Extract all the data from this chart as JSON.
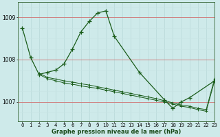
{
  "title": "Graphe pression niveau de la mer (hPa)",
  "bg_color": "#ceeaea",
  "line_color": "#1a5c1a",
  "xlim": [
    -0.5,
    23
  ],
  "ylim": [
    1006.55,
    1009.35
  ],
  "yticks": [
    1007,
    1008,
    1009
  ],
  "xtick_labels": [
    "0",
    "1",
    "2",
    "3",
    "4",
    "5",
    "6",
    "7",
    "8",
    "9",
    "10",
    "11",
    "12",
    "13",
    "14",
    "15",
    "16",
    "17",
    "18",
    "19",
    "20",
    "21",
    "22",
    "23"
  ],
  "xticks": [
    0,
    1,
    2,
    3,
    4,
    5,
    6,
    7,
    8,
    9,
    10,
    11,
    12,
    13,
    14,
    15,
    16,
    17,
    18,
    19,
    20,
    21,
    22,
    23
  ],
  "series1_x": [
    0,
    1,
    2,
    3,
    4,
    5,
    6,
    7,
    8,
    9,
    10,
    11,
    14,
    17,
    18,
    19,
    20,
    23
  ],
  "series1_y": [
    1008.75,
    1008.05,
    1007.65,
    1007.7,
    1007.75,
    1007.9,
    1008.25,
    1008.65,
    1008.9,
    1009.1,
    1009.15,
    1008.55,
    1007.7,
    1007.05,
    1006.85,
    1007.0,
    1007.1,
    1007.5
  ],
  "series2_x": [
    2,
    3,
    4,
    5,
    6,
    7,
    8,
    9,
    10,
    11,
    12,
    13,
    14,
    15,
    16,
    17,
    18,
    19,
    20,
    21,
    22,
    23
  ],
  "series2_y": [
    1007.65,
    1007.55,
    1007.5,
    1007.45,
    1007.42,
    1007.38,
    1007.35,
    1007.32,
    1007.28,
    1007.24,
    1007.2,
    1007.16,
    1007.12,
    1007.08,
    1007.04,
    1007.0,
    1006.95,
    1006.9,
    1006.87,
    1006.82,
    1006.78,
    1007.5
  ],
  "series3_x": [
    2,
    3,
    4,
    5,
    6,
    7,
    8,
    9,
    10,
    11,
    12,
    13,
    14,
    15,
    16,
    17,
    18,
    19,
    20,
    21,
    22,
    23
  ],
  "series3_y": [
    1007.68,
    1007.58,
    1007.54,
    1007.5,
    1007.47,
    1007.43,
    1007.4,
    1007.36,
    1007.32,
    1007.28,
    1007.24,
    1007.2,
    1007.16,
    1007.12,
    1007.08,
    1007.03,
    1006.98,
    1006.93,
    1006.9,
    1006.85,
    1006.82,
    1007.55
  ],
  "hline_color": "#d08080",
  "vline_color": "#b8d8d8",
  "hline_minor_color": "#c8e4e4"
}
